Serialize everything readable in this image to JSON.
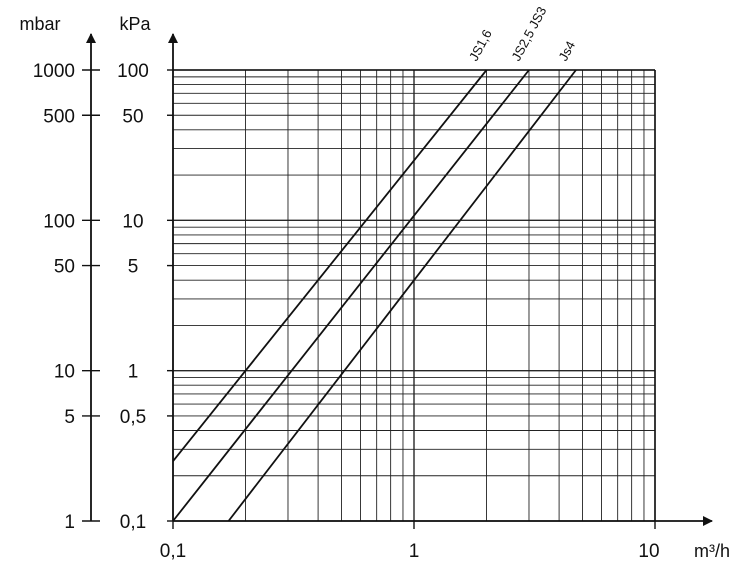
{
  "chart_data": {
    "type": "line",
    "title": "",
    "xlabel": "m³/h",
    "xscale": "log",
    "yscale": "log",
    "grid": true,
    "xlim": [
      0.1,
      10
    ],
    "ylim_kpa": [
      0.1,
      100
    ],
    "ylim_mbar": [
      1,
      1000
    ],
    "x_ticks": [
      {
        "value": 0.1,
        "label": "0,1"
      },
      {
        "value": 1,
        "label": "1"
      },
      {
        "value": 10,
        "label": "10"
      }
    ],
    "y_axis_left": {
      "label": "mbar",
      "ticks": [
        {
          "value": 1000,
          "label": "1000"
        },
        {
          "value": 500,
          "label": "500"
        },
        {
          "value": 100,
          "label": "100"
        },
        {
          "value": 50,
          "label": "50"
        },
        {
          "value": 10,
          "label": "10"
        },
        {
          "value": 5,
          "label": "5"
        },
        {
          "value": 1,
          "label": "1"
        }
      ]
    },
    "y_axis_right": {
      "label": "kPa",
      "ticks": [
        {
          "value": 100,
          "label": "100"
        },
        {
          "value": 50,
          "label": "50"
        },
        {
          "value": 10,
          "label": "10"
        },
        {
          "value": 5,
          "label": "5"
        },
        {
          "value": 1,
          "label": "1"
        },
        {
          "value": 0.5,
          "label": "0,5"
        },
        {
          "value": 0.1,
          "label": "0,1"
        }
      ]
    },
    "series": [
      {
        "name": "JS1,6",
        "points": [
          {
            "x": 0.1,
            "y": 0.25
          },
          {
            "x": 2.0,
            "y": 100
          }
        ]
      },
      {
        "name": "JS2,5 JS3",
        "points": [
          {
            "x": 0.1,
            "y": 0.1
          },
          {
            "x": 3.0,
            "y": 100
          }
        ]
      },
      {
        "name": "Js4",
        "points": [
          {
            "x": 0.17,
            "y": 0.1
          },
          {
            "x": 4.7,
            "y": 100
          }
        ]
      }
    ]
  }
}
